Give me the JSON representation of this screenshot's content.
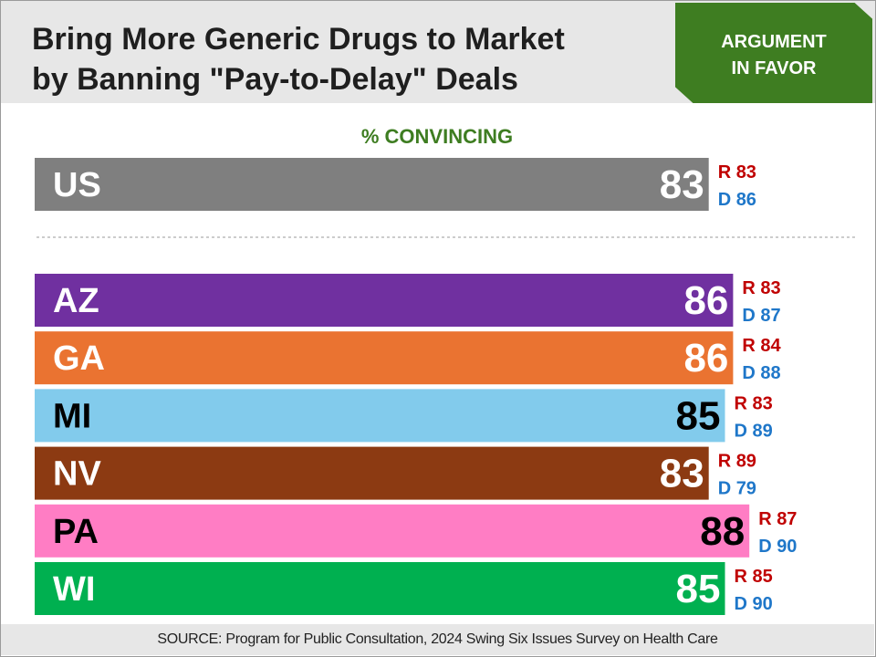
{
  "header": {
    "title_lines": [
      "Bring More Generic Drugs to Market",
      "by Banning \"Pay-to-Delay\" Deals"
    ],
    "badge_lines": [
      "ARGUMENT",
      "IN FAVOR"
    ]
  },
  "colors": {
    "header_bg": "#e7e7e7",
    "badge_green": "#3e7d21",
    "republican": "#c00000",
    "democrat": "#1f77c9"
  },
  "chart_data": {
    "type": "bar",
    "orientation": "horizontal",
    "title": "% CONVINCING",
    "xlim": [
      0,
      100
    ],
    "grid": false,
    "national": {
      "label": "US",
      "value": 83,
      "r": 83,
      "d": 86,
      "color": "#7f7f7f",
      "value_color": "#ffffff"
    },
    "states": [
      {
        "label": "AZ",
        "value": 86,
        "r": 83,
        "d": 87,
        "color": "#7030a0",
        "value_color": "#ffffff"
      },
      {
        "label": "GA",
        "value": 86,
        "r": 84,
        "d": 88,
        "color": "#ea7331",
        "value_color": "#ffffff"
      },
      {
        "label": "MI",
        "value": 85,
        "r": 83,
        "d": 89,
        "color": "#82cbec",
        "value_color": "#000000"
      },
      {
        "label": "NV",
        "value": 83,
        "r": 89,
        "d": 79,
        "color": "#8c3a12",
        "value_color": "#ffffff"
      },
      {
        "label": "PA",
        "value": 88,
        "r": 87,
        "d": 90,
        "color": "#ff7dc4",
        "value_color": "#000000"
      },
      {
        "label": "WI",
        "value": 85,
        "r": 85,
        "d": 90,
        "color": "#00b050",
        "value_color": "#ffffff"
      }
    ]
  },
  "source": "SOURCE: Program for Public Consultation, 2024 Swing Six Issues Survey on Health Care"
}
